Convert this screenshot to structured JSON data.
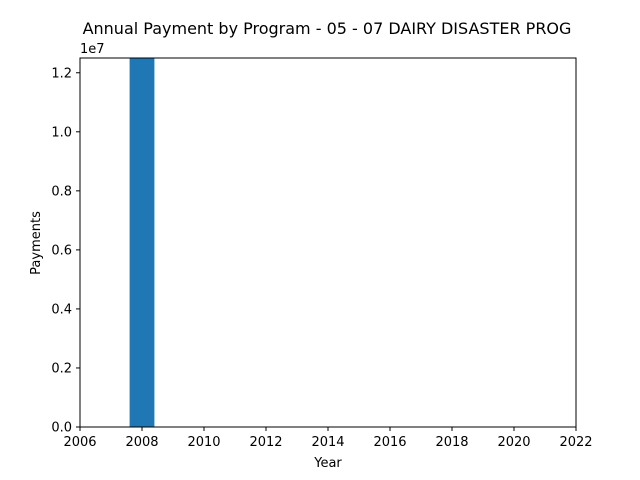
{
  "chart_data": {
    "type": "bar",
    "title": "Annual Payment by Program - 05 - 07 DAIRY DISASTER PROG",
    "xlabel": "Year",
    "ylabel": "Payments",
    "y_offset_label": "1e7",
    "xlim": [
      2006,
      2022
    ],
    "ylim": [
      0,
      12500000
    ],
    "x": [
      2008
    ],
    "values": [
      12500000
    ],
    "bar_width_years": 0.8,
    "xticks": [
      2006,
      2008,
      2010,
      2012,
      2014,
      2016,
      2018,
      2020,
      2022
    ],
    "xtick_labels": [
      "2006",
      "2008",
      "2010",
      "2012",
      "2014",
      "2016",
      "2018",
      "2020",
      "2022"
    ],
    "yticks": [
      0,
      2000000,
      4000000,
      6000000,
      8000000,
      10000000,
      12000000
    ],
    "ytick_labels": [
      "0.0",
      "0.2",
      "0.4",
      "0.6",
      "0.8",
      "1.0",
      "1.2"
    ],
    "grid": false,
    "legend": "none",
    "bar_color": "#1f77b4"
  }
}
